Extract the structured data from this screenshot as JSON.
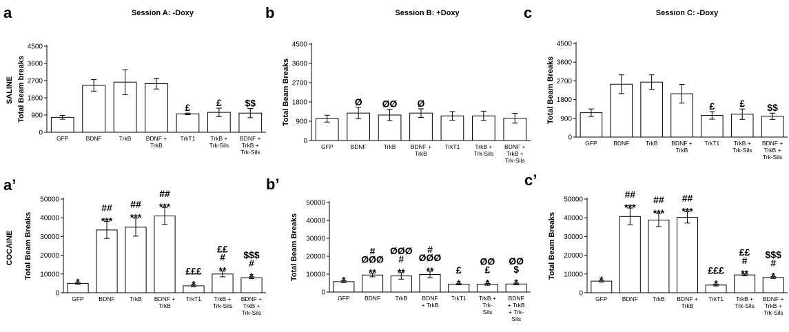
{
  "figure": {
    "row_labels": [
      "SALINE",
      "COCAINE"
    ]
  },
  "chart_data": [
    {
      "id": "a",
      "panel_label": "a",
      "title": "Session A: -Doxy",
      "type": "bar",
      "ylabel": "Total Beam breaks",
      "ylim": [
        0,
        4500
      ],
      "yticks": [
        "0",
        "900",
        "1800",
        "2700",
        "3600",
        "4500"
      ],
      "categories": [
        [
          "GFP"
        ],
        [
          "BDNF"
        ],
        [
          "TrkB"
        ],
        [
          "BDNF +",
          "TrkB"
        ],
        [
          "TrkT1"
        ],
        [
          "TrkB +",
          "Trk-Sils"
        ],
        [
          "BDNF +",
          "TrkB +",
          "Trk-Sils"
        ]
      ],
      "series": [
        {
          "values": [
            780,
            2450,
            2620,
            2540,
            960,
            1040,
            1000
          ],
          "errors": [
            100,
            300,
            650,
            280,
            40,
            220,
            240
          ]
        }
      ],
      "annotations": [
        [],
        [],
        [],
        [],
        [
          "£"
        ],
        [
          "£"
        ],
        [
          "$$"
        ]
      ]
    },
    {
      "id": "b",
      "panel_label": "b",
      "title": "Session B: +Doxy",
      "type": "bar",
      "ylabel": "Total Beam Breaks",
      "ylim": [
        0,
        4500
      ],
      "yticks": [
        "0",
        "900",
        "1800",
        "2700",
        "3600",
        "4500"
      ],
      "categories": [
        [
          "GFP"
        ],
        [
          "BDNF"
        ],
        [
          "TrkB"
        ],
        [
          "BDNF +",
          "TrkB"
        ],
        [
          "TrkT1"
        ],
        [
          "TrkB +",
          "Trk-Sils"
        ],
        [
          "BDNF +",
          "TrkB +",
          "Trk-Sils"
        ]
      ],
      "series": [
        {
          "values": [
            1020,
            1280,
            1190,
            1280,
            1150,
            1150,
            1040
          ],
          "errors": [
            160,
            270,
            270,
            200,
            200,
            220,
            230
          ]
        }
      ],
      "annotations": [
        [],
        [
          "Ø"
        ],
        [
          "ØØ"
        ],
        [
          "Ø"
        ],
        [],
        [],
        []
      ]
    },
    {
      "id": "c",
      "panel_label": "c",
      "title": "Session C: -Doxy",
      "type": "bar",
      "ylabel": "Total Beam Breaks",
      "ylim": [
        0,
        4500
      ],
      "yticks": [
        "0",
        "900",
        "1800",
        "2700",
        "3600",
        "4500"
      ],
      "categories": [
        [
          "GFP"
        ],
        [
          "BDNF"
        ],
        [
          "TrkB"
        ],
        [
          "BDNF +",
          "TrkB"
        ],
        [
          "TrkT1"
        ],
        [
          "TrkB +",
          "Trk-Sils"
        ],
        [
          "BDNF +",
          "TrkB +",
          "Trk-Sils"
        ]
      ],
      "series": [
        {
          "values": [
            1170,
            2540,
            2640,
            2080,
            1040,
            1100,
            1000
          ],
          "errors": [
            180,
            450,
            350,
            450,
            180,
            250,
            150
          ]
        }
      ],
      "annotations": [
        [],
        [],
        [],
        [],
        [
          "£"
        ],
        [
          "£"
        ],
        [
          "$$"
        ]
      ]
    },
    {
      "id": "a2",
      "panel_label": "a’",
      "title": "",
      "type": "bar",
      "ylabel": "Total Beam Breaks",
      "ylim": [
        0,
        50000
      ],
      "yticks": [
        "0",
        "10000",
        "20000",
        "30000",
        "40000",
        "50000"
      ],
      "categories": [
        [
          "GFP"
        ],
        [
          "BDNF"
        ],
        [
          "TrkB"
        ],
        [
          "BDNF +",
          "TrkB"
        ],
        [
          "TrkT1"
        ],
        [
          "TrkB +",
          "Trk-Sils"
        ],
        [
          "BDNF +",
          "TrkB +",
          "Trk-Sils"
        ]
      ],
      "series": [
        {
          "values": [
            5000,
            33500,
            35000,
            41000,
            3700,
            10000,
            8000
          ],
          "errors": [
            500,
            4500,
            4800,
            4500,
            500,
            1500,
            500
          ]
        }
      ],
      "annotations": [
        [
          "*"
        ],
        [
          "##",
          "***"
        ],
        [
          "##",
          "***"
        ],
        [
          "##",
          "***"
        ],
        [
          "£££",
          "*"
        ],
        [
          "££",
          "#",
          "**"
        ],
        [
          "$$$",
          "#",
          "*"
        ]
      ]
    },
    {
      "id": "b2",
      "panel_label": "b’",
      "title": "",
      "type": "bar",
      "ylabel": "Total Beam Breaks",
      "ylim": [
        0,
        50000
      ],
      "yticks": [
        "0",
        "10000",
        "20000",
        "30000",
        "40000",
        "50000"
      ],
      "categories": [
        [
          "GFP"
        ],
        [
          "BDNF"
        ],
        [
          "TrkB"
        ],
        [
          "BDNF",
          "+ TrkB"
        ],
        [
          "TrkT1"
        ],
        [
          "TrkB +",
          "Trk-",
          "Sils"
        ],
        [
          "BDNF",
          "+ TrkB",
          "+ Trk-",
          "Sils"
        ]
      ],
      "series": [
        {
          "values": [
            5800,
            9500,
            9000,
            9800,
            4400,
            4300,
            4500
          ],
          "errors": [
            500,
            1000,
            1800,
            1800,
            300,
            500,
            500
          ]
        }
      ],
      "annotations": [
        [
          "*"
        ],
        [
          "#",
          "ØØØ",
          "**"
        ],
        [
          "ØØØ",
          "#",
          "**"
        ],
        [
          "#",
          "ØØØ",
          "**"
        ],
        [
          "£",
          "*"
        ],
        [
          "ØØ",
          "£",
          "*"
        ],
        [
          "ØØ",
          "$",
          "*"
        ]
      ]
    },
    {
      "id": "c2",
      "panel_label": "c’",
      "title": "",
      "type": "bar",
      "ylabel": "Total Beam Breaks",
      "ylim": [
        0,
        50000
      ],
      "yticks": [
        "0",
        "10000",
        "20000",
        "30000",
        "40000",
        "50000"
      ],
      "categories": [
        [
          "GFP"
        ],
        [
          "BDNF"
        ],
        [
          "TrkB"
        ],
        [
          "BDNF +",
          "TrkB"
        ],
        [
          "TrkT1"
        ],
        [
          "TrkB +",
          "Trk-Sils"
        ],
        [
          "BDNF +",
          "TrkB +",
          "Trk-Sils"
        ]
      ],
      "series": [
        {
          "values": [
            6200,
            40700,
            38800,
            40200,
            4100,
            9500,
            8100
          ],
          "errors": [
            500,
            4500,
            3500,
            3000,
            500,
            500,
            500
          ]
        }
      ],
      "annotations": [
        [
          "*"
        ],
        [
          "##",
          "***"
        ],
        [
          "##",
          "***"
        ],
        [
          "##",
          "***"
        ],
        [
          "£££",
          "*"
        ],
        [
          "££",
          "#",
          "**"
        ],
        [
          "$$$",
          "#",
          "*"
        ]
      ]
    }
  ]
}
